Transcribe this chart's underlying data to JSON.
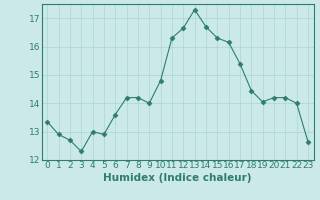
{
  "x": [
    0,
    1,
    2,
    3,
    4,
    5,
    6,
    7,
    8,
    9,
    10,
    11,
    12,
    13,
    14,
    15,
    16,
    17,
    18,
    19,
    20,
    21,
    22,
    23
  ],
  "y": [
    13.35,
    12.9,
    12.7,
    12.3,
    13.0,
    12.9,
    13.6,
    14.2,
    14.2,
    14.0,
    14.8,
    16.3,
    16.65,
    17.3,
    16.7,
    16.3,
    16.15,
    15.4,
    14.45,
    14.05,
    14.2,
    14.2,
    14.0,
    12.65
  ],
  "line_color": "#2e7d6e",
  "marker": "D",
  "marker_size": 2.5,
  "bg_color": "#cce9e9",
  "grid_color": "#aad4d4",
  "xlabel": "Humidex (Indice chaleur)",
  "ylim": [
    12,
    17.5
  ],
  "xlim": [
    -0.5,
    23.5
  ],
  "yticks": [
    12,
    13,
    14,
    15,
    16,
    17
  ],
  "xticks": [
    0,
    1,
    2,
    3,
    4,
    5,
    6,
    7,
    8,
    9,
    10,
    11,
    12,
    13,
    14,
    15,
    16,
    17,
    18,
    19,
    20,
    21,
    22,
    23
  ],
  "tick_color": "#2e7d6e",
  "axis_label_color": "#2e7d6e",
  "fontsize_label": 7.5,
  "fontsize_ticks": 6.5
}
